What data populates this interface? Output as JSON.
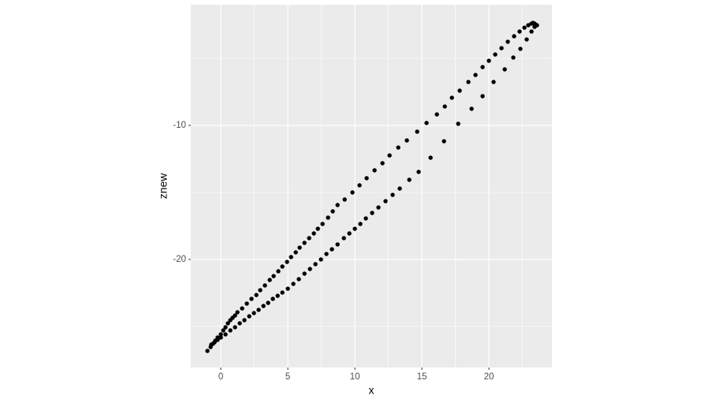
{
  "chart_data": {
    "type": "scatter",
    "x_label": "x",
    "y_label": "znew",
    "xlim": [
      -2.24,
      24.7
    ],
    "ylim": [
      -28.06,
      -1.0
    ],
    "xticks": [
      0,
      5,
      10,
      15,
      20
    ],
    "yticks": [
      -10,
      -20
    ],
    "x_minor_grid": [
      2.5,
      7.5,
      12.5,
      17.5,
      22.5
    ],
    "y_minor_grid": [
      -5,
      -15,
      -25
    ],
    "grid": true,
    "panel_color": "#ebebeb",
    "grid_color": "#ffffff",
    "series": [
      {
        "color": "#000000",
        "x": [
          -1.0,
          -0.76,
          -0.59,
          -0.41,
          -0.24,
          0,
          0.18,
          0.35,
          0.53,
          0.71,
          0.88,
          1.06,
          1.24,
          1.59,
          1.94,
          2.29,
          2.65,
          2.94,
          3.29,
          3.65,
          3.94,
          4.29,
          4.59,
          4.94,
          5.24,
          5.59,
          5.88,
          6.24,
          6.59,
          6.94,
          7.24,
          7.59,
          8.0,
          8.35,
          8.71,
          9.24,
          9.82,
          10.35,
          10.88,
          11.47,
          12.06,
          12.59,
          13.24,
          13.88,
          14.65,
          15.35,
          16.12,
          16.71,
          17.24,
          17.82,
          18.47,
          19.0,
          19.53,
          20.0,
          20.47,
          20.94,
          21.41,
          21.88,
          22.29,
          22.65,
          22.94,
          23.18,
          23.29,
          23.41,
          23.53,
          -0.71,
          -0.47,
          -0.24,
          0.0,
          0.35,
          0.71,
          1.06,
          1.41,
          1.76,
          2.12,
          2.47,
          2.82,
          3.18,
          3.53,
          3.88,
          4.24,
          4.59,
          5.0,
          5.41,
          5.82,
          6.24,
          6.65,
          7.06,
          7.47,
          7.88,
          8.29,
          8.71,
          9.18,
          9.59,
          10.0,
          10.41,
          10.82,
          11.29,
          11.76,
          12.29,
          12.82,
          13.35,
          14.06,
          14.76,
          15.65,
          16.65,
          17.71,
          18.71,
          19.53,
          20.35,
          21.18,
          21.82,
          22.35,
          22.82,
          23.18,
          23.41,
          23.59
        ],
        "values": [
          -26.82,
          -26.53,
          -26.29,
          -26.06,
          -25.82,
          -25.59,
          -25.29,
          -25.06,
          -24.76,
          -24.53,
          -24.35,
          -24.18,
          -23.94,
          -23.65,
          -23.29,
          -22.94,
          -22.65,
          -22.29,
          -21.94,
          -21.53,
          -21.24,
          -20.88,
          -20.53,
          -20.18,
          -19.82,
          -19.47,
          -19.12,
          -18.76,
          -18.41,
          -18.06,
          -17.71,
          -17.35,
          -16.88,
          -16.41,
          -15.94,
          -15.53,
          -15.0,
          -14.47,
          -13.94,
          -13.35,
          -12.82,
          -12.24,
          -11.65,
          -11.12,
          -10.47,
          -9.82,
          -9.18,
          -8.59,
          -7.94,
          -7.41,
          -6.76,
          -6.24,
          -5.65,
          -5.18,
          -4.71,
          -4.24,
          -3.76,
          -3.35,
          -3.0,
          -2.71,
          -2.53,
          -2.41,
          -2.35,
          -2.41,
          -2.53,
          -26.35,
          -26.18,
          -26.0,
          -25.82,
          -25.59,
          -25.29,
          -25.06,
          -24.76,
          -24.53,
          -24.24,
          -24.0,
          -23.76,
          -23.47,
          -23.24,
          -22.94,
          -22.71,
          -22.47,
          -22.18,
          -21.82,
          -21.47,
          -21.06,
          -20.71,
          -20.35,
          -20.0,
          -19.59,
          -19.24,
          -18.88,
          -18.41,
          -18.06,
          -17.71,
          -17.35,
          -16.94,
          -16.53,
          -16.12,
          -15.65,
          -15.18,
          -14.71,
          -14.06,
          -13.47,
          -12.41,
          -11.18,
          -9.88,
          -8.76,
          -7.82,
          -6.76,
          -5.82,
          -4.94,
          -4.29,
          -3.59,
          -3.0,
          -2.65,
          -2.53
        ]
      }
    ]
  }
}
